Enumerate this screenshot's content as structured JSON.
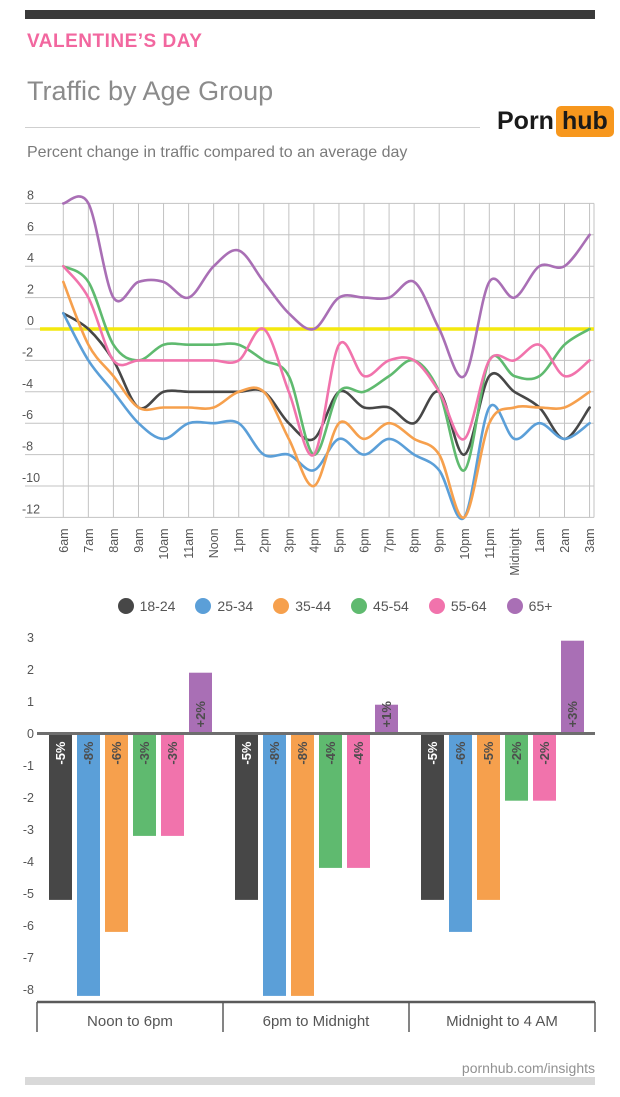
{
  "header": {
    "eyebrow": "VALENTINE’S DAY",
    "title": "Traffic by Age Group",
    "subtitle": "Percent change in traffic compared to an average day",
    "logo_part1": "Porn",
    "logo_part2": "hub"
  },
  "footer": {
    "site": "pornhub.com/insights"
  },
  "colors": {
    "topbar": "#3a3a3a",
    "eyebrow_pink": "#f2679f",
    "heading_gray": "#8b8b8b",
    "logo_orange": "#f7971d",
    "grid": "#c3c3c3",
    "axis_text": "#555555",
    "zero_line_yellow": "#f4e80e",
    "bar_zero_axis": "#6e6e6e"
  },
  "chart_data": [
    {
      "type": "line",
      "title": "Percent change in traffic compared to an average day",
      "x": [
        "6am",
        "7am",
        "8am",
        "9am",
        "10am",
        "11am",
        "Noon",
        "1pm",
        "2pm",
        "3pm",
        "4pm",
        "5pm",
        "6pm",
        "7pm",
        "8pm",
        "9pm",
        "10pm",
        "11pm",
        "Midnight",
        "1am",
        "2am",
        "3am"
      ],
      "ylim": [
        -12,
        8
      ],
      "yticks": [
        8,
        6,
        4,
        2,
        0,
        -2,
        -4,
        -6,
        -8,
        -10,
        -12
      ],
      "grid": true,
      "zero_line": 0,
      "legend_position": "bottom",
      "series": [
        {
          "name": "18-24",
          "color": "#474747",
          "values": [
            1,
            0,
            -2,
            -5,
            -4,
            -4,
            -4,
            -4,
            -4,
            -6,
            -7,
            -4,
            -5,
            -5,
            -6,
            -4,
            -8,
            -3,
            -4,
            -5,
            -7,
            -5
          ]
        },
        {
          "name": "25-34",
          "color": "#5b9fd8",
          "values": [
            1,
            -2,
            -4,
            -6,
            -7,
            -6,
            -6,
            -6,
            -8,
            -8,
            -9,
            -7,
            -8,
            -7,
            -8,
            -9,
            -12,
            -5,
            -7,
            -6,
            -7,
            -6
          ]
        },
        {
          "name": "35-44",
          "color": "#f6a04d",
          "values": [
            3,
            -1,
            -3,
            -5,
            -5,
            -5,
            -5,
            -4,
            -4,
            -7,
            -10,
            -6,
            -7,
            -6,
            -7,
            -8,
            -12,
            -6,
            -5,
            -5,
            -5,
            -4
          ]
        },
        {
          "name": "45-54",
          "color": "#5fba6f",
          "values": [
            4,
            3,
            -1,
            -2,
            -1,
            -1,
            -1,
            -1,
            -2,
            -3,
            -8,
            -4,
            -4,
            -3,
            -2,
            -4,
            -9,
            -2,
            -3,
            -3,
            -1,
            0
          ]
        },
        {
          "name": "55-64",
          "color": "#f173ac",
          "values": [
            4,
            2,
            -2,
            -2,
            -2,
            -2,
            -2,
            -2,
            0,
            -4,
            -8,
            -1,
            -3,
            -2,
            -2,
            -4,
            -7,
            -2,
            -2,
            -1,
            -3,
            -2
          ]
        },
        {
          "name": "65+",
          "color": "#a96fb5",
          "values": [
            8,
            8,
            2,
            3,
            3,
            2,
            4,
            5,
            3,
            1,
            0,
            2,
            2,
            2,
            3,
            0,
            -3,
            3,
            2,
            4,
            4,
            6
          ]
        }
      ]
    },
    {
      "type": "bar",
      "categories": [
        "Noon to 6pm",
        "6pm to Midnight",
        "Midnight to 4 AM"
      ],
      "ylim": [
        -8.6,
        3.4
      ],
      "yticks": [
        3,
        2,
        1,
        0,
        -1,
        -2,
        -3,
        -4,
        -5,
        -6,
        -7,
        -8
      ],
      "grid": false,
      "series": [
        {
          "name": "18-24",
          "color": "#474747",
          "values": [
            -5.2,
            -5.2,
            -5.2
          ],
          "labels": [
            "-5%",
            "-5%",
            "-5%"
          ],
          "label_color": "#ffffff"
        },
        {
          "name": "25-34",
          "color": "#5b9fd8",
          "values": [
            -8.2,
            -8.2,
            -6.2
          ],
          "labels": [
            "-8%",
            "-8%",
            "-6%"
          ],
          "label_color": "#4d4d4d"
        },
        {
          "name": "35-44",
          "color": "#f6a04d",
          "values": [
            -6.2,
            -8.2,
            -5.2
          ],
          "labels": [
            "-6%",
            "-8%",
            "-5%"
          ],
          "label_color": "#4d4d4d"
        },
        {
          "name": "45-54",
          "color": "#5fba6f",
          "values": [
            -3.2,
            -4.2,
            -2.1
          ],
          "labels": [
            "-3%",
            "-4%",
            "-2%"
          ],
          "label_color": "#4d4d4d"
        },
        {
          "name": "55-64",
          "color": "#f173ac",
          "values": [
            -3.2,
            -4.2,
            -2.1
          ],
          "labels": [
            "-3%",
            "-4%",
            "-2%"
          ],
          "label_color": "#4d4d4d"
        },
        {
          "name": "65+",
          "color": "#a96fb5",
          "values": [
            1.9,
            0.9,
            2.9
          ],
          "labels": [
            "+2%",
            "+1%",
            "+3%"
          ],
          "label_color": "#4d4d4d"
        }
      ]
    }
  ]
}
